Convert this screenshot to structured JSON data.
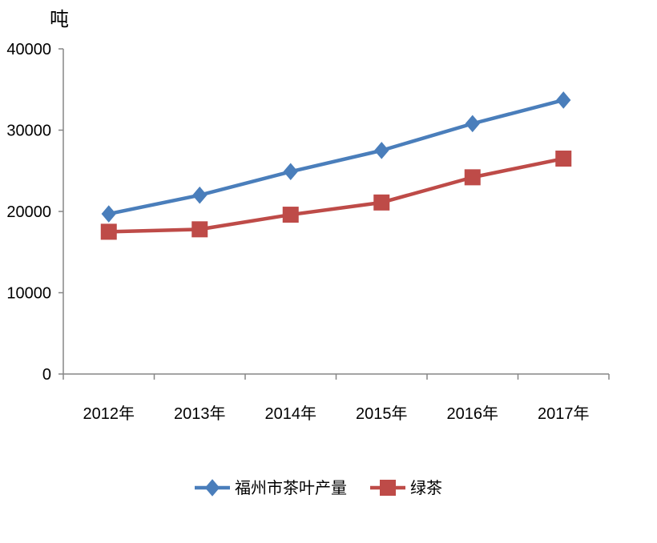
{
  "chart_data": {
    "type": "line",
    "unit_label": "吨",
    "categories": [
      "2012年",
      "2013年",
      "2014年",
      "2015年",
      "2016年",
      "2017年"
    ],
    "ylim": [
      0,
      40000
    ],
    "yticks": [
      "0",
      "10000",
      "20000",
      "30000",
      "40000"
    ],
    "grid": false,
    "legend_position": "bottom",
    "series": [
      {
        "name": "福州市茶叶产量",
        "values": [
          19700,
          22000,
          24900,
          27500,
          30800,
          33700
        ],
        "color": "#4a7ebb",
        "marker": "diamond"
      },
      {
        "name": "绿茶",
        "values": [
          17500,
          17800,
          19600,
          21100,
          24200,
          26500
        ],
        "color": "#be4b48",
        "marker": "square"
      }
    ]
  }
}
